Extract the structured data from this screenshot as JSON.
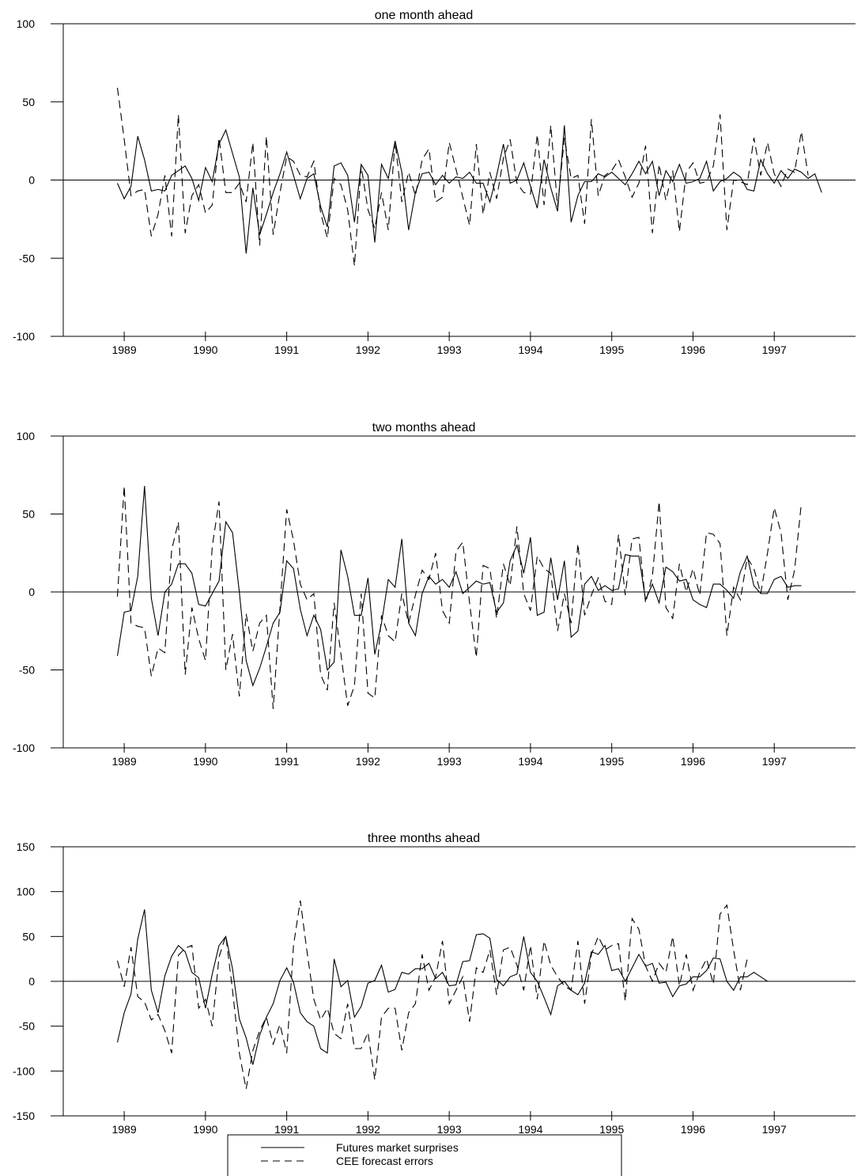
{
  "chart_data": [
    {
      "type": "line",
      "title": "one month ahead",
      "ylim": [
        -100,
        100
      ],
      "yticks": [
        -100,
        -50,
        0,
        50,
        100
      ],
      "x_start": 1988.917,
      "x_step": 0.08333,
      "xlim": [
        1988.25,
        1998.0
      ],
      "xticks": [
        "1989",
        "1990",
        "1991",
        "1992",
        "1993",
        "1994",
        "1995",
        "1996",
        "1997"
      ],
      "zero_line": true,
      "series": [
        {
          "name": "Futures market surprises",
          "style": "solid",
          "values": [
            -2,
            -12,
            -4,
            28,
            13,
            -7,
            -6,
            -7,
            3,
            6,
            9,
            1,
            -13,
            8,
            -1,
            23,
            32,
            17,
            2,
            -47,
            -5,
            -35,
            -22,
            -8,
            4,
            18,
            3,
            -12,
            1,
            4,
            -17,
            -30,
            9,
            11,
            3,
            -27,
            10,
            3,
            -40,
            10,
            1,
            25,
            5,
            -32,
            -8,
            4,
            5,
            -3,
            3,
            -2,
            2,
            1,
            5,
            -2,
            -2,
            -14,
            3,
            23,
            -2,
            0,
            11,
            -4,
            -18,
            13,
            -5,
            -20,
            35,
            -27,
            -10,
            -1,
            -1,
            4,
            2,
            5,
            1,
            -3,
            4,
            12,
            4,
            12,
            -10,
            6,
            -1,
            10,
            -2,
            -1,
            1,
            12,
            -7,
            -1,
            1,
            5,
            2,
            -6,
            -7,
            13,
            4,
            -2,
            6,
            1,
            7,
            5,
            1,
            4,
            -8
          ]
        },
        {
          "name": "CEE forecast errors",
          "style": "dashed",
          "values": [
            59,
            26,
            -10,
            -7,
            -6,
            -36,
            -22,
            3,
            -36,
            42,
            -34,
            -10,
            -3,
            -21,
            -16,
            27,
            -8,
            -8,
            -2,
            -14,
            24,
            -42,
            28,
            -35,
            -8,
            15,
            12,
            3,
            2,
            12,
            -21,
            -37,
            1,
            -3,
            -19,
            -55,
            9,
            -19,
            -31,
            -8,
            -32,
            25,
            -14,
            5,
            -10,
            13,
            20,
            -14,
            -11,
            24,
            7,
            -11,
            -29,
            23,
            -22,
            5,
            -12,
            14,
            26,
            -2,
            -8,
            -9,
            29,
            -16,
            35,
            -17,
            27,
            1,
            3,
            -28,
            39,
            -10,
            3,
            6,
            13,
            2,
            -11,
            -2,
            22,
            -34,
            10,
            -13,
            6,
            -33,
            5,
            11,
            -2,
            -1,
            9,
            42,
            -32,
            0,
            -1,
            -3,
            27,
            3,
            24,
            4,
            -4,
            7,
            5,
            31,
            3
          ]
        }
      ]
    },
    {
      "type": "line",
      "title": "two months ahead",
      "ylim": [
        -100,
        100
      ],
      "yticks": [
        -100,
        -50,
        0,
        50,
        100
      ],
      "x_start": 1988.917,
      "x_step": 0.08333,
      "xlim": [
        1988.25,
        1998.0
      ],
      "xticks": [
        "1989",
        "1990",
        "1991",
        "1992",
        "1993",
        "1994",
        "1995",
        "1996",
        "1997"
      ],
      "zero_line": true,
      "series": [
        {
          "name": "Futures market surprises",
          "style": "solid",
          "values": [
            -41,
            -13,
            -12,
            10,
            68,
            -4,
            -28,
            0,
            5,
            18,
            18,
            12,
            -8,
            -9,
            -1,
            7,
            45,
            38,
            0,
            -44,
            -60,
            -49,
            -35,
            -20,
            -13,
            20,
            15,
            -11,
            -28,
            -15,
            -24,
            -50,
            -45,
            27,
            10,
            -15,
            -15,
            9,
            -40,
            -20,
            8,
            3,
            34,
            -20,
            -28,
            -1,
            10,
            5,
            8,
            3,
            13,
            -1,
            3,
            7,
            5,
            6,
            -13,
            -7,
            20,
            30,
            12,
            35,
            -15,
            -13,
            22,
            -5,
            20,
            -29,
            -25,
            5,
            10,
            1,
            4,
            1,
            2,
            24,
            23,
            23,
            -5,
            5,
            -7,
            16,
            13,
            7,
            8,
            -5,
            -8,
            -10,
            5,
            5,
            1,
            -4,
            13,
            23,
            4,
            -1,
            -1,
            8,
            10,
            3,
            4,
            4
          ]
        },
        {
          "name": "CEE forecast errors",
          "style": "dashed",
          "values": [
            -3,
            68,
            -20,
            -22,
            -23,
            -54,
            -36,
            -39,
            27,
            45,
            -53,
            -10,
            -30,
            -44,
            29,
            58,
            -50,
            -27,
            -67,
            -14,
            -38,
            -20,
            -15,
            -75,
            -10,
            53,
            33,
            5,
            -5,
            -1,
            -53,
            -63,
            -7,
            -40,
            -73,
            -60,
            -1,
            -65,
            -68,
            -15,
            -28,
            -32,
            -1,
            -20,
            -2,
            14,
            8,
            25,
            -12,
            -20,
            26,
            32,
            -7,
            -42,
            17,
            15,
            -17,
            18,
            4,
            42,
            -1,
            -12,
            23,
            15,
            12,
            -25,
            -1,
            -20,
            31,
            -15,
            -2,
            9,
            -6,
            -8,
            37,
            -2,
            34,
            35,
            -7,
            10,
            58,
            -10,
            -17,
            18,
            0,
            15,
            -2,
            38,
            37,
            31,
            -28,
            3,
            -5,
            22,
            15,
            -1,
            25,
            54,
            38,
            -5,
            14,
            57
          ]
        }
      ]
    },
    {
      "type": "line",
      "title": "three months ahead",
      "ylim": [
        -150,
        150
      ],
      "yticks": [
        -150,
        -100,
        -50,
        0,
        50,
        100,
        150
      ],
      "x_start": 1988.917,
      "x_step": 0.08333,
      "xlim": [
        1988.25,
        1998.0
      ],
      "xticks": [
        "1989",
        "1990",
        "1991",
        "1992",
        "1993",
        "1994",
        "1995",
        "1996",
        "1997"
      ],
      "zero_line": true,
      "series": [
        {
          "name": "Futures market surprises",
          "style": "solid",
          "values": [
            -68,
            -35,
            -14,
            47,
            80,
            -10,
            -35,
            6,
            28,
            40,
            33,
            10,
            4,
            -30,
            8,
            40,
            50,
            14,
            -42,
            -63,
            -93,
            -60,
            -40,
            -25,
            1,
            15,
            -1,
            -35,
            -45,
            -50,
            -75,
            -80,
            25,
            -6,
            1,
            -40,
            -28,
            -2,
            1,
            18,
            -12,
            -9,
            10,
            8,
            14,
            14,
            20,
            3,
            10,
            -5,
            -4,
            22,
            23,
            52,
            53,
            48,
            2,
            -5,
            5,
            8,
            50,
            10,
            0,
            -18,
            -37,
            -5,
            0,
            -10,
            -15,
            -2,
            33,
            30,
            40,
            12,
            14,
            0,
            15,
            30,
            17,
            20,
            -2,
            -1,
            -17,
            -5,
            -3,
            5,
            5,
            12,
            26,
            25,
            0,
            -10,
            5,
            5,
            10,
            5,
            0
          ]
        },
        {
          "name": "CEE forecast errors",
          "style": "dashed",
          "values": [
            23,
            -6,
            38,
            -17,
            -23,
            -43,
            -37,
            -55,
            -80,
            29,
            37,
            40,
            -30,
            -20,
            -50,
            27,
            51,
            -10,
            -80,
            -120,
            -77,
            -55,
            -40,
            -70,
            -48,
            -80,
            40,
            90,
            33,
            -20,
            -43,
            -30,
            -58,
            -64,
            -25,
            -75,
            -75,
            -57,
            -110,
            -40,
            -30,
            -30,
            -77,
            -35,
            -25,
            30,
            -10,
            5,
            45,
            -25,
            -10,
            5,
            -45,
            15,
            10,
            35,
            -15,
            35,
            38,
            18,
            -10,
            40,
            -20,
            45,
            18,
            5,
            -5,
            -10,
            45,
            -25,
            30,
            50,
            35,
            40,
            42,
            -22,
            70,
            58,
            17,
            0,
            20,
            10,
            50,
            -5,
            30,
            -10,
            10,
            25,
            -3,
            75,
            85,
            35,
            -10,
            25
          ]
        }
      ]
    }
  ],
  "legend": [
    {
      "label": "Futures market surprises",
      "style": "solid"
    },
    {
      "label": "CEE forecast errors",
      "style": "dashed"
    }
  ]
}
